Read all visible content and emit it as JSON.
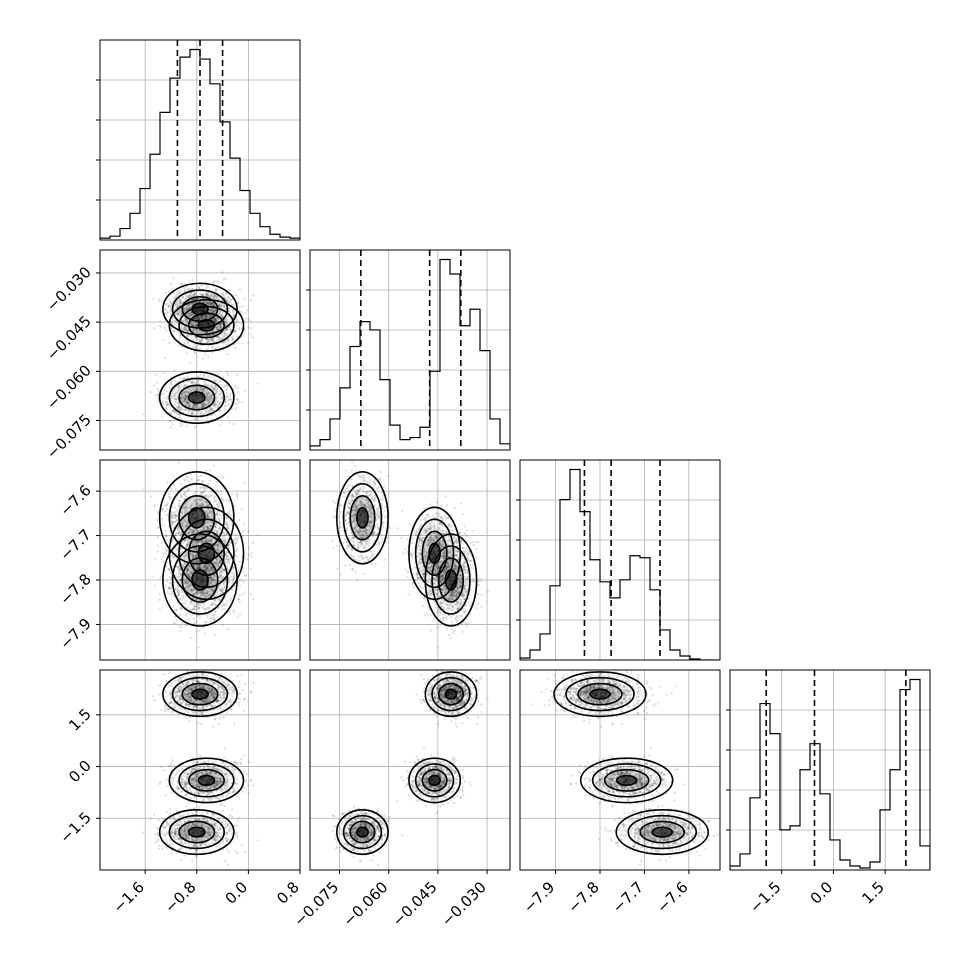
{
  "chart_data": {
    "type": "corner",
    "title": "",
    "grid": true,
    "colors": {
      "hist": "#000000",
      "contour": "#000000",
      "points": "#000000"
    },
    "parameters": [
      {
        "range": [
          -2.3,
          0.8
        ],
        "ticks": [
          -1.6,
          -0.8,
          0.0,
          0.8
        ],
        "tick_labels": [
          "−1.6",
          "−0.8",
          "0.0",
          "0.8"
        ],
        "quantiles": [
          -1.1,
          -0.75,
          -0.4
        ],
        "hist": [
          0.01,
          0.02,
          0.06,
          0.14,
          0.27,
          0.45,
          0.67,
          0.85,
          0.96,
          1.0,
          0.95,
          0.82,
          0.62,
          0.43,
          0.26,
          0.14,
          0.07,
          0.03,
          0.015,
          0.01
        ]
      },
      {
        "range": [
          -0.084,
          -0.023
        ],
        "ticks": [
          -0.075,
          -0.06,
          -0.045,
          -0.03
        ],
        "tick_labels": [
          "−0.075",
          "−0.060",
          "−0.045",
          "−0.030"
        ],
        "quantiles": [
          -0.0685,
          -0.0475,
          -0.038
        ],
        "hist": [
          0.02,
          0.05,
          0.15,
          0.3,
          0.5,
          0.62,
          0.58,
          0.34,
          0.12,
          0.05,
          0.06,
          0.11,
          0.38,
          0.92,
          0.85,
          0.6,
          0.68,
          0.48,
          0.15,
          0.03
        ]
      },
      {
        "range": [
          -7.98,
          -7.53
        ],
        "ticks": [
          -7.9,
          -7.8,
          -7.7,
          -7.6
        ],
        "tick_labels": [
          "−7.9",
          "−7.8",
          "−7.7",
          "−7.6"
        ],
        "quantiles": [
          -7.835,
          -7.775,
          -7.665
        ],
        "hist": [
          0.01,
          0.05,
          0.13,
          0.37,
          0.8,
          0.95,
          0.74,
          0.5,
          0.39,
          0.31,
          0.4,
          0.52,
          0.51,
          0.35,
          0.15,
          0.05,
          0.02,
          0.005,
          0.0,
          0.0
        ]
      },
      {
        "range": [
          -3.0,
          2.8
        ],
        "ticks": [
          -1.5,
          0.0,
          1.5
        ],
        "tick_labels": [
          "−1.5",
          "0.0",
          "1.5"
        ],
        "quantiles": [
          -1.95,
          -0.55,
          2.1
        ],
        "hist": [
          0.02,
          0.08,
          0.36,
          0.83,
          0.68,
          0.2,
          0.22,
          0.5,
          0.63,
          0.38,
          0.15,
          0.05,
          0.02,
          0.01,
          0.04,
          0.3,
          0.5,
          0.9,
          0.95,
          0.12
        ]
      }
    ],
    "clusters": [
      {
        "center": [
          -0.75,
          -0.041,
          -7.8,
          2.1
        ],
        "weight": 0.4
      },
      {
        "center": [
          -0.8,
          -0.068,
          -7.66,
          -1.9
        ],
        "weight": 0.3
      },
      {
        "center": [
          -0.65,
          -0.046,
          -7.74,
          -0.4
        ],
        "weight": 0.3
      }
    ]
  }
}
